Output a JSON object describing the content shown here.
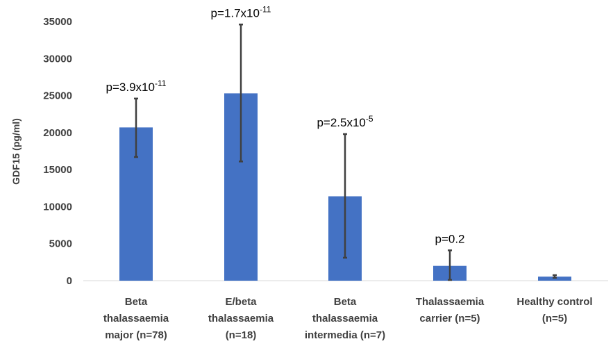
{
  "chart_data": {
    "type": "bar",
    "categories": [
      [
        "Beta",
        "thalassaemia",
        "major (n=78)"
      ],
      [
        "E/beta",
        "thalassaemia",
        "(n=18)"
      ],
      [
        "Beta",
        "thalassaemia",
        "intermedia (n=7)"
      ],
      [
        "Thalassaemia",
        "carrier (n=5)"
      ],
      [
        "Healthy control",
        "(n=5)"
      ]
    ],
    "values": [
      20700,
      25300,
      11400,
      2000,
      550
    ],
    "error_low": [
      16700,
      16100,
      3100,
      100,
      400
    ],
    "error_high": [
      24600,
      34600,
      19800,
      4100,
      750
    ],
    "annotations": [
      {
        "base": "p=3.9x10",
        "exp": "-11"
      },
      {
        "base": "p=1.7x10",
        "exp": "-11"
      },
      {
        "base": "p=2.5x10",
        "exp": "-5"
      },
      {
        "base": "p=0.2",
        "exp": ""
      },
      {
        "base": "",
        "exp": ""
      }
    ],
    "ylabel": "GDF15 (pg/ml)",
    "ylim": [
      0,
      35000
    ],
    "yticks": [
      0,
      5000,
      10000,
      15000,
      20000,
      25000,
      30000,
      35000
    ],
    "bar_color": "#4472C4",
    "error_color": "#404040",
    "grid": false
  }
}
